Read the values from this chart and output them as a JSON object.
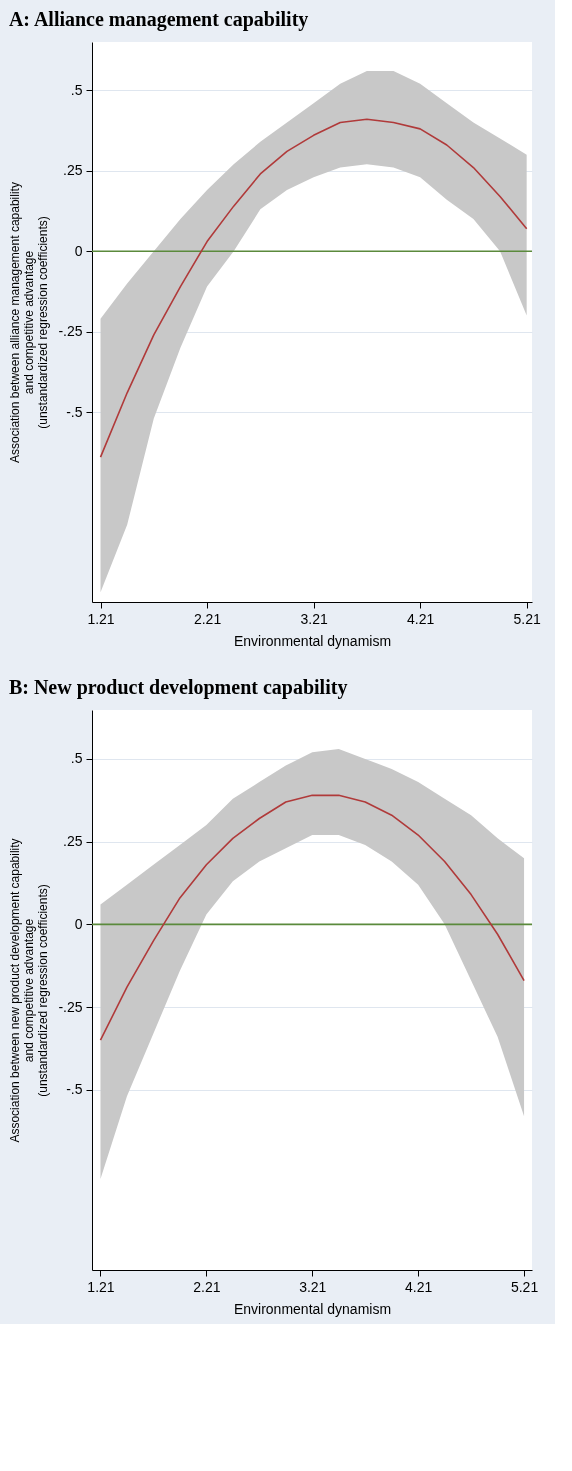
{
  "chart_data": [
    {
      "type": "line",
      "title": "A: Alliance management capability",
      "xlabel": "Environmental dynamism",
      "ylabel": "Association between alliance management capability\nand competitive advantage\n(unstandardized regression coefficients)",
      "x": [
        1.21,
        1.46,
        1.71,
        1.96,
        2.21,
        2.46,
        2.71,
        2.96,
        3.21,
        3.46,
        3.71,
        3.96,
        4.21,
        4.46,
        4.71,
        4.96,
        5.21
      ],
      "xlim": [
        1.13,
        5.26
      ],
      "xticks": [
        1.21,
        2.21,
        3.21,
        4.21,
        5.21
      ],
      "ylim": [
        -1.09,
        0.65
      ],
      "yticks": [
        {
          "value": 0.5,
          "label": ".5"
        },
        {
          "value": 0.25,
          "label": ".25"
        },
        0,
        {
          "value": -0.25,
          "label": "-.25"
        },
        {
          "value": -0.5,
          "label": "-.5"
        }
      ],
      "grid": "y",
      "series": [
        {
          "color": "#b03a3a",
          "values": [
            -0.64,
            -0.44,
            -0.26,
            -0.11,
            0.03,
            0.14,
            0.24,
            0.31,
            0.36,
            0.4,
            0.41,
            0.4,
            0.38,
            0.33,
            0.26,
            0.17,
            0.07
          ],
          "lower": [
            -1.06,
            -0.85,
            -0.52,
            -0.3,
            -0.11,
            0.0,
            0.13,
            0.19,
            0.23,
            0.26,
            0.27,
            0.26,
            0.23,
            0.16,
            0.1,
            0.0,
            -0.2
          ],
          "upper": [
            -0.21,
            -0.1,
            0.0,
            0.1,
            0.19,
            0.27,
            0.34,
            0.4,
            0.46,
            0.52,
            0.56,
            0.56,
            0.52,
            0.46,
            0.4,
            0.35,
            0.3
          ]
        }
      ],
      "ref_lines": [
        {
          "axis": "y",
          "value": 0,
          "color": "#5b8a3c"
        }
      ]
    },
    {
      "type": "line",
      "title": "B: New product development capability",
      "xlabel": "Environmental dynamism",
      "ylabel": "Association between new product development capability\nand competitive advantage\n(unstandardized regression coefficients)",
      "x": [
        1.21,
        1.46,
        1.71,
        1.96,
        2.21,
        2.46,
        2.71,
        2.96,
        3.21,
        3.46,
        3.71,
        3.96,
        4.21,
        4.46,
        4.71,
        4.96,
        5.21
      ],
      "xlim": [
        1.13,
        5.285
      ],
      "xticks": [
        1.21,
        2.21,
        3.21,
        4.21,
        5.21
      ],
      "ylim": [
        -1.045,
        0.648
      ],
      "yticks": [
        {
          "value": 0.5,
          "label": ".5"
        },
        {
          "value": 0.25,
          "label": ".25"
        },
        0,
        {
          "value": -0.25,
          "label": "-.25"
        },
        {
          "value": -0.5,
          "label": "-.5"
        }
      ],
      "grid": "y",
      "series": [
        {
          "color": "#b03a3a",
          "values": [
            -0.35,
            -0.19,
            -0.05,
            0.08,
            0.18,
            0.26,
            0.32,
            0.37,
            0.39,
            0.39,
            0.37,
            0.33,
            0.27,
            0.19,
            0.09,
            -0.03,
            -0.17
          ],
          "lower": [
            -0.77,
            -0.52,
            -0.33,
            -0.14,
            0.03,
            0.13,
            0.19,
            0.23,
            0.27,
            0.27,
            0.24,
            0.19,
            0.12,
            0.0,
            -0.17,
            -0.34,
            -0.58
          ],
          "upper": [
            0.06,
            0.12,
            0.18,
            0.24,
            0.3,
            0.38,
            0.43,
            0.48,
            0.52,
            0.53,
            0.5,
            0.47,
            0.43,
            0.38,
            0.33,
            0.26,
            0.2
          ]
        }
      ],
      "ref_lines": [
        {
          "axis": "y",
          "value": 0,
          "color": "#5b8a3c"
        }
      ]
    }
  ]
}
